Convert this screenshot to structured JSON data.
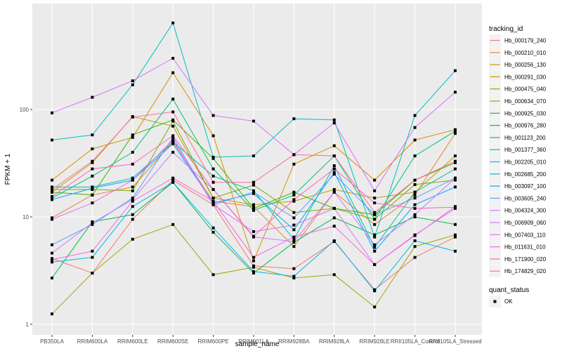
{
  "chart_data": {
    "type": "line",
    "title": "",
    "xlabel": "sample_name",
    "ylabel": "FPKM + 1",
    "yscale": "log10",
    "ylim": [
      0.85,
      1050
    ],
    "yticks": [
      1,
      10,
      100
    ],
    "ytick_labels": [
      "1",
      "10",
      "100"
    ],
    "grid": true,
    "legend_position": "right",
    "categories": [
      "PB350LA",
      "RRIM600LA",
      "RRIM600LE",
      "RRIM600SE",
      "RRIM600PE",
      "RRIM901LA",
      "RRIM928BA",
      "RRIM928LA",
      "RRIM928LE",
      "RRII105LA_Control",
      "RRII105LA_Stressed"
    ],
    "color_legend_title": "tracking_id",
    "shape_legend_title": "quant_status",
    "shape_legend": [
      {
        "label": "OK",
        "symbol": "square"
      }
    ],
    "series": [
      {
        "name": "Hb_000179_240",
        "color": "#F8766D",
        "values": [
          4.1,
          3.0,
          9.5,
          22,
          13,
          3.5,
          3.3,
          5.9,
          2.1,
          4.2,
          6.5
        ]
      },
      {
        "name": "Hb_000210_010",
        "color": "#EA8331",
        "values": [
          9.8,
          16,
          19,
          50,
          14,
          12.5,
          5.3,
          17,
          8.5,
          16,
          60
        ]
      },
      {
        "name": "Hb_000256_130",
        "color": "#D89000",
        "values": [
          22,
          43,
          55,
          220,
          57,
          3.9,
          31,
          46,
          22,
          52,
          65
        ]
      },
      {
        "name": "Hb_000291_030",
        "color": "#C09B00",
        "values": [
          17,
          32,
          86,
          70,
          15,
          13,
          14,
          18,
          15,
          17,
          37
        ]
      },
      {
        "name": "Hb_000475_040",
        "color": "#A3A500",
        "values": [
          1.25,
          3.0,
          6.2,
          8.5,
          2.9,
          3.4,
          2.7,
          2.9,
          1.45,
          5.3,
          6.8
        ]
      },
      {
        "name": "Hb_000634_070",
        "color": "#7CAE00",
        "values": [
          18,
          18,
          17.5,
          78,
          15,
          19.8,
          11,
          12,
          9.5,
          20,
          22
        ]
      },
      {
        "name": "Hb_000925_030",
        "color": "#39B600",
        "values": [
          17,
          16,
          58,
          80,
          35,
          12,
          17,
          12,
          10.5,
          22,
          32
        ]
      },
      {
        "name": "Hb_000976_280",
        "color": "#00BB4E",
        "values": [
          2.7,
          9.0,
          10.5,
          21,
          7.2,
          3.0,
          5.8,
          9.8,
          6.8,
          10,
          8.5
        ]
      },
      {
        "name": "Hb_001123_200",
        "color": "#00BF7D",
        "values": [
          15,
          24,
          40,
          125,
          28,
          11.5,
          16,
          37,
          9.5,
          37,
          63
        ]
      },
      {
        "name": "Hb_001377_360",
        "color": "#00C1A3",
        "values": [
          19,
          19,
          23,
          50,
          24,
          17.5,
          6.2,
          30,
          5.2,
          17,
          28
        ]
      },
      {
        "name": "Hb_002205_010",
        "color": "#00BFC4",
        "values": [
          52,
          58,
          170,
          640,
          36,
          37,
          82,
          80,
          6.5,
          88,
          230
        ]
      },
      {
        "name": "Hb_002685_200",
        "color": "#00B8E7",
        "values": [
          3.8,
          4.2,
          12.5,
          21,
          7.9,
          3.1,
          2.8,
          6.0,
          2.05,
          6.0,
          4.8
        ]
      },
      {
        "name": "Hb_003097_100",
        "color": "#00A9FF",
        "values": [
          14.5,
          18.5,
          22,
          48,
          13.5,
          16.5,
          7.6,
          26,
          4.8,
          13,
          19
        ]
      },
      {
        "name": "Hb_003605_240",
        "color": "#619CFF",
        "values": [
          5.5,
          8.5,
          15,
          55,
          13,
          17,
          9.8,
          25,
          10.5,
          15,
          23
        ]
      },
      {
        "name": "Hb_004324_300",
        "color": "#C77CFF",
        "values": [
          4.6,
          8.8,
          14.5,
          40,
          18,
          6.5,
          5.9,
          17,
          5.5,
          10.5,
          23
        ]
      },
      {
        "name": "Hb_006909_060",
        "color": "#DB72FB",
        "values": [
          93,
          130,
          185,
          300,
          88,
          78,
          38,
          75,
          17.5,
          68,
          145
        ]
      },
      {
        "name": "Hb_007403_110",
        "color": "#E76BF3",
        "values": [
          9.5,
          13.5,
          22,
          52,
          13,
          7.3,
          8.4,
          12,
          3.6,
          6.8,
          12
        ]
      },
      {
        "name": "Hb_011631_010",
        "color": "#F564E3",
        "values": [
          4.0,
          4.8,
          14,
          23,
          14,
          4.2,
          6.5,
          8.2,
          3.6,
          6.7,
          12.5
        ]
      },
      {
        "name": "Hb_171900_020",
        "color": "#FF61C3",
        "values": [
          15.5,
          28,
          31,
          57,
          18,
          6.6,
          14.5,
          28,
          13.5,
          12,
          12.3
        ]
      },
      {
        "name": "Hb_174829_020",
        "color": "#FF6C91",
        "values": [
          18,
          33,
          85,
          95,
          21,
          21,
          38,
          37,
          11,
          22,
          33
        ]
      }
    ]
  }
}
